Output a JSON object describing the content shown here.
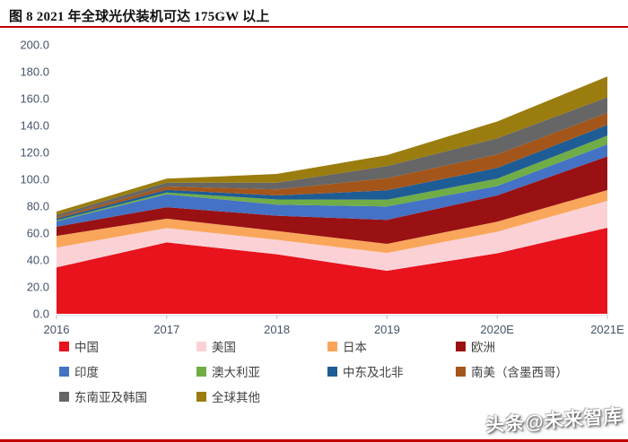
{
  "page": {
    "title": "图 8 2021 年全球光伏装机可达 175GW 以上",
    "watermark": "头条@未来智库",
    "accent_rule_color": "#c00000"
  },
  "chart_data": {
    "type": "area",
    "stacked": true,
    "title": "图 8 2021 年全球光伏装机可达 175GW 以上",
    "unit": "GW",
    "x": [
      "2016",
      "2017",
      "2018",
      "2019",
      "2020E",
      "2021E"
    ],
    "yticks": [
      "0.0",
      "20.0",
      "40.0",
      "60.0",
      "80.0",
      "100.0",
      "120.0",
      "140.0",
      "160.0",
      "180.0",
      "200.0"
    ],
    "ylim": [
      0,
      200
    ],
    "grid": false,
    "legend_position": "bottom",
    "axis_color": "#44546a",
    "series": [
      {
        "name": "中国",
        "color": "#e8131d",
        "values": [
          34.5,
          53.1,
          44.3,
          32.0,
          45.0,
          64.0
        ]
      },
      {
        "name": "美国",
        "color": "#fbd1d5",
        "values": [
          14.8,
          10.6,
          10.7,
          13.3,
          16.0,
          20.0
        ]
      },
      {
        "name": "日本",
        "color": "#f9a65b",
        "values": [
          8.6,
          7.0,
          6.6,
          6.7,
          7.5,
          8.0
        ]
      },
      {
        "name": "欧洲",
        "color": "#991113",
        "values": [
          6.8,
          8.6,
          11.3,
          17.8,
          19.5,
          25.0
        ]
      },
      {
        "name": "印度",
        "color": "#4472c4",
        "values": [
          4.0,
          9.6,
          8.3,
          10.0,
          7.0,
          9.0
        ]
      },
      {
        "name": "澳大利亚",
        "color": "#70ad47",
        "values": [
          0.8,
          1.3,
          3.8,
          5.0,
          5.5,
          6.5
        ]
      },
      {
        "name": "中东及北非",
        "color": "#1e5c96",
        "values": [
          1.2,
          2.0,
          3.0,
          7.0,
          8.0,
          8.0
        ]
      },
      {
        "name": "南美（含墨西哥）",
        "color": "#a4561a",
        "values": [
          1.0,
          2.5,
          4.5,
          9.0,
          10.0,
          9.0
        ]
      },
      {
        "name": "东南亚及韩国",
        "color": "#666666",
        "values": [
          1.8,
          2.8,
          5.0,
          9.0,
          12.0,
          11.5
        ]
      },
      {
        "name": "全球其他",
        "color": "#9a7d0e",
        "values": [
          2.5,
          3.0,
          6.5,
          8.2,
          12.5,
          15.5
        ]
      }
    ]
  }
}
